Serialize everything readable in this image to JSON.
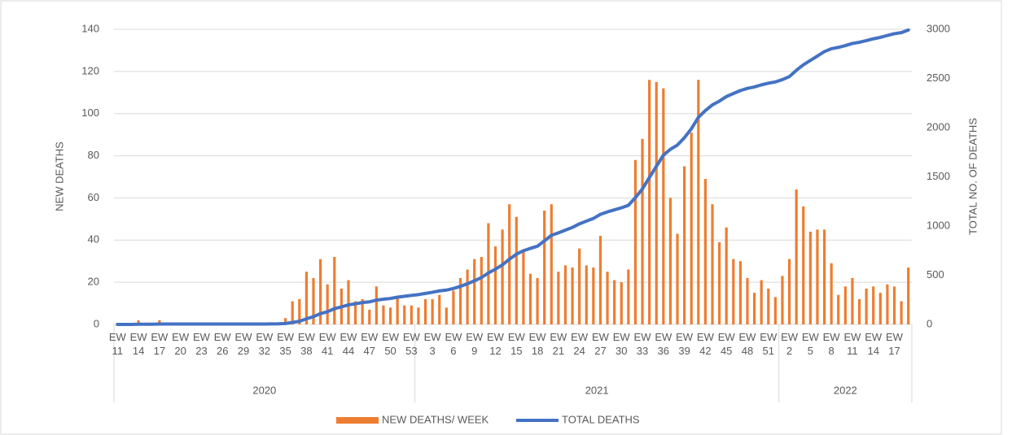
{
  "chart_data": {
    "type": "bar_line",
    "y_label": "NEW DEATHS",
    "y2_label": "TOTAL NO. OF DEATHS",
    "categories": [
      "EW 11",
      null,
      null,
      "EW 14",
      null,
      null,
      "EW 17",
      null,
      null,
      "EW 20",
      null,
      null,
      "EW 23",
      null,
      null,
      "EW 26",
      null,
      null,
      "EW 29",
      null,
      null,
      "EW 32",
      null,
      null,
      "EW 35",
      null,
      null,
      "EW 38",
      null,
      null,
      "EW 41",
      null,
      null,
      "EW 44",
      null,
      null,
      "EW 47",
      null,
      null,
      "EW 50",
      null,
      null,
      "EW 53",
      null,
      null,
      "EW 3",
      null,
      null,
      "EW 6",
      null,
      null,
      "EW 9",
      null,
      null,
      "EW 12",
      null,
      null,
      "EW 15",
      null,
      null,
      "EW 18",
      null,
      null,
      "EW 21",
      null,
      null,
      "EW 24",
      null,
      null,
      "EW 27",
      null,
      null,
      "EW 30",
      null,
      null,
      "EW 33",
      null,
      null,
      "EW 36",
      null,
      null,
      "EW 39",
      null,
      null,
      "EW 42",
      null,
      null,
      "EW 45",
      null,
      null,
      "EW 48",
      null,
      null,
      "EW 51",
      null,
      null,
      "EW 2",
      null,
      null,
      "EW 5",
      null,
      null,
      "EW 8",
      null,
      null,
      "EW 11",
      null,
      null,
      "EW 14",
      null,
      null,
      "EW 17",
      null,
      null
    ],
    "groups": [
      {
        "name": "2020",
        "count": 43
      },
      {
        "name": "2021",
        "count": 52
      },
      {
        "name": "2022",
        "count": 19
      }
    ],
    "series": [
      {
        "name": "NEW DEATHS/ WEEK",
        "type": "bar",
        "color": "#ed7d31",
        "values": [
          0,
          0,
          0,
          2,
          0,
          0,
          2,
          0,
          0,
          0,
          0,
          0,
          0,
          0,
          0,
          0,
          0,
          0,
          0,
          0,
          0,
          0,
          1,
          1,
          3,
          11,
          12,
          25,
          22,
          31,
          19,
          32,
          17,
          21,
          11,
          12,
          7,
          18,
          9,
          8,
          13,
          9,
          9,
          8,
          12,
          12,
          14,
          8,
          16,
          22,
          26,
          31,
          32,
          48,
          37,
          45,
          57,
          51,
          35,
          24,
          22,
          54,
          57,
          25,
          28,
          27,
          36,
          28,
          27,
          42,
          25,
          21,
          20,
          26,
          78,
          88,
          116,
          115,
          112,
          60,
          43,
          75,
          91,
          116,
          69,
          57,
          39,
          46,
          31,
          30,
          22,
          15,
          21,
          17,
          13,
          23,
          31,
          64,
          56,
          44,
          45,
          45,
          29,
          14,
          18,
          22,
          12,
          17,
          18,
          15,
          19,
          18,
          11,
          27
        ]
      },
      {
        "name": "TOTAL DEATHS",
        "type": "line",
        "axis": "y2",
        "color": "#4472c4",
        "values": [
          0,
          0,
          0,
          2,
          2,
          2,
          4,
          4,
          4,
          4,
          4,
          4,
          4,
          4,
          4,
          4,
          4,
          4,
          4,
          4,
          4,
          4,
          5,
          6,
          9,
          20,
          32,
          57,
          79,
          110,
          129,
          161,
          178,
          199,
          210,
          222,
          229,
          247,
          256,
          264,
          277,
          286,
          295,
          303,
          315,
          327,
          341,
          349,
          365,
          387,
          413,
          444,
          476,
          524,
          561,
          606,
          663,
          714,
          749,
          773,
          795,
          849,
          906,
          931,
          959,
          986,
          1022,
          1050,
          1077,
          1119,
          1144,
          1165,
          1185,
          1211,
          1289,
          1377,
          1493,
          1608,
          1720,
          1780,
          1823,
          1898,
          1989,
          2105,
          2174,
          2231,
          2270,
          2316,
          2347,
          2377,
          2399,
          2414,
          2435,
          2452,
          2465,
          2488,
          2519,
          2583,
          2639,
          2683,
          2728,
          2773,
          2802,
          2816,
          2834,
          2856,
          2868,
          2885,
          2903,
          2918,
          2937,
          2955,
          2966,
          2993
        ]
      }
    ],
    "ylim": [
      0,
      140
    ],
    "yticks": [
      0,
      20,
      40,
      60,
      80,
      100,
      120,
      140
    ],
    "y2lim": [
      0,
      3000
    ],
    "y2ticks": [
      0,
      500,
      1000,
      1500,
      2000,
      2500,
      3000
    ],
    "grid": true,
    "legend": "bottom"
  }
}
